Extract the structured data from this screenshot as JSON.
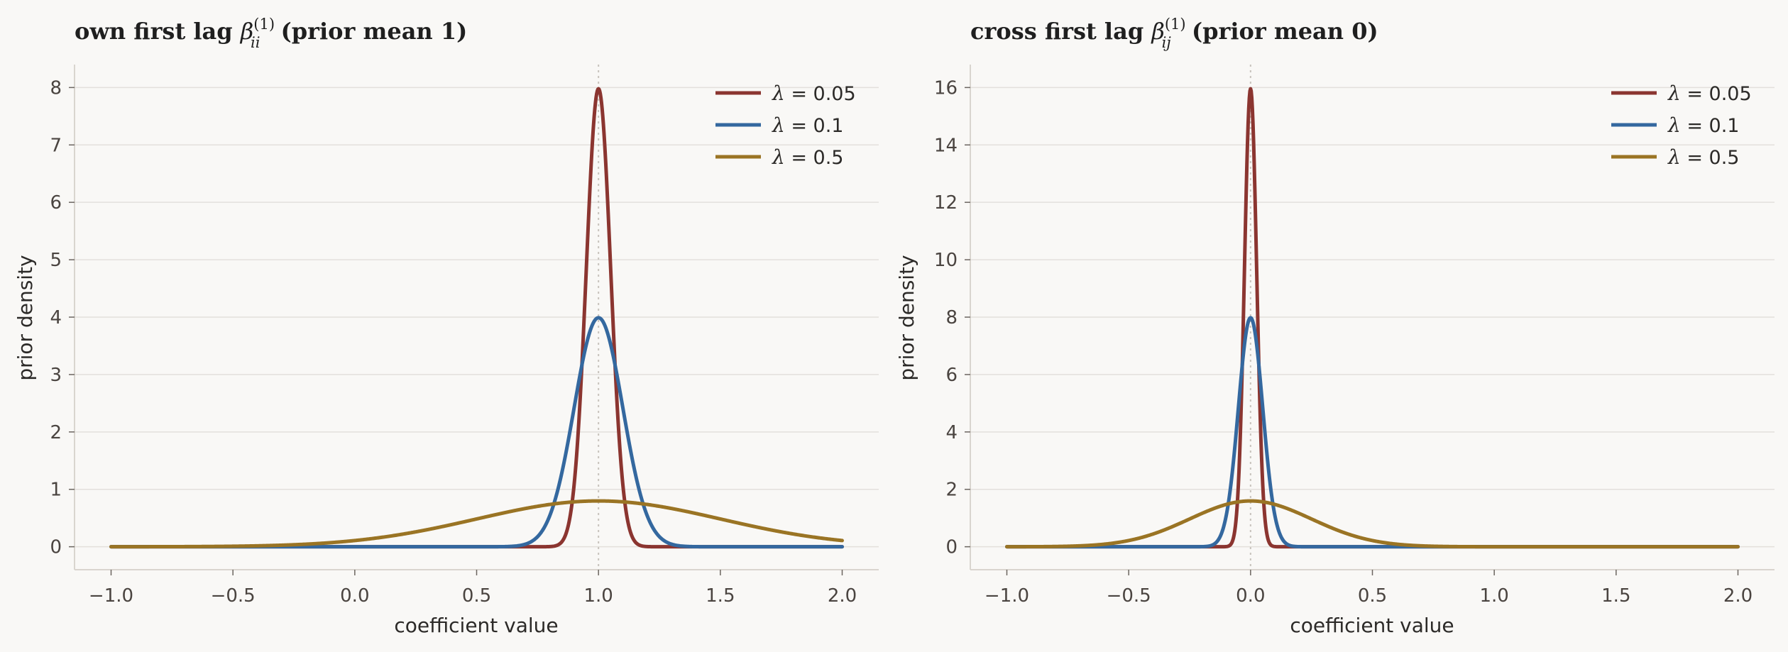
{
  "chart_data": [
    {
      "type": "line",
      "title": "own first lag β_ii^(1) (prior mean 1)",
      "title_parts": {
        "prefix": "own first lag ",
        "symbol": "β",
        "subscript": "ii",
        "superscript": "(1)",
        "suffix": " (prior mean 1)"
      },
      "xlabel": "coefficient value",
      "ylabel": "prior density",
      "xlim": [
        -1.15,
        2.15
      ],
      "ylim": [
        -0.4,
        8.4
      ],
      "xticks": [
        -1.0,
        -0.5,
        0.0,
        0.5,
        1.0,
        1.5,
        2.0
      ],
      "xtick_labels": [
        "−1.0",
        "−0.5",
        "0.0",
        "0.5",
        "1.0",
        "1.5",
        "2.0"
      ],
      "yticks": [
        0,
        1,
        2,
        3,
        4,
        5,
        6,
        7,
        8
      ],
      "ytick_labels": [
        "0",
        "1",
        "2",
        "3",
        "4",
        "5",
        "6",
        "7",
        "8"
      ],
      "reference_x": 1.0,
      "distribution": "normal",
      "x_range": [
        -1.0,
        2.0
      ],
      "grid": "horizontal",
      "legend_position": "top-right",
      "series": [
        {
          "name": "λ = 0.05",
          "lambda_value": "0.05",
          "mean": 1.0,
          "sd": 0.05,
          "peak": 7.98,
          "color": "#8b3530"
        },
        {
          "name": "λ = 0.1",
          "lambda_value": "0.1",
          "mean": 1.0,
          "sd": 0.1,
          "peak": 3.99,
          "color": "#34689f"
        },
        {
          "name": "λ = 0.5",
          "lambda_value": "0.5",
          "mean": 1.0,
          "sd": 0.5,
          "peak": 0.8,
          "color": "#9a7424"
        }
      ]
    },
    {
      "type": "line",
      "title": "cross first lag β_ij^(1) (prior mean 0)",
      "title_parts": {
        "prefix": "cross first lag ",
        "symbol": "β",
        "subscript": "ij",
        "superscript": "(1)",
        "suffix": " (prior mean 0)"
      },
      "xlabel": "coefficient value",
      "ylabel": "prior density",
      "xlim": [
        -1.15,
        2.15
      ],
      "ylim": [
        -0.8,
        16.8
      ],
      "xticks": [
        -1.0,
        -0.5,
        0.0,
        0.5,
        1.0,
        1.5,
        2.0
      ],
      "xtick_labels": [
        "−1.0",
        "−0.5",
        "0.0",
        "0.5",
        "1.0",
        "1.5",
        "2.0"
      ],
      "yticks": [
        0,
        2,
        4,
        6,
        8,
        10,
        12,
        14,
        16
      ],
      "ytick_labels": [
        "0",
        "2",
        "4",
        "6",
        "8",
        "10",
        "12",
        "14",
        "16"
      ],
      "reference_x": 0.0,
      "distribution": "normal",
      "x_range": [
        -1.0,
        2.0
      ],
      "grid": "horizontal",
      "legend_position": "top-right",
      "series": [
        {
          "name": "λ = 0.05",
          "lambda_value": "0.05",
          "mean": 0.0,
          "sd": 0.025,
          "peak": 15.96,
          "color": "#8b3530"
        },
        {
          "name": "λ = 0.1",
          "lambda_value": "0.1",
          "mean": 0.0,
          "sd": 0.05,
          "peak": 7.98,
          "color": "#34689f"
        },
        {
          "name": "λ = 0.5",
          "lambda_value": "0.5",
          "mean": 0.0,
          "sd": 0.25,
          "peak": 1.6,
          "color": "#9a7424"
        }
      ]
    }
  ]
}
